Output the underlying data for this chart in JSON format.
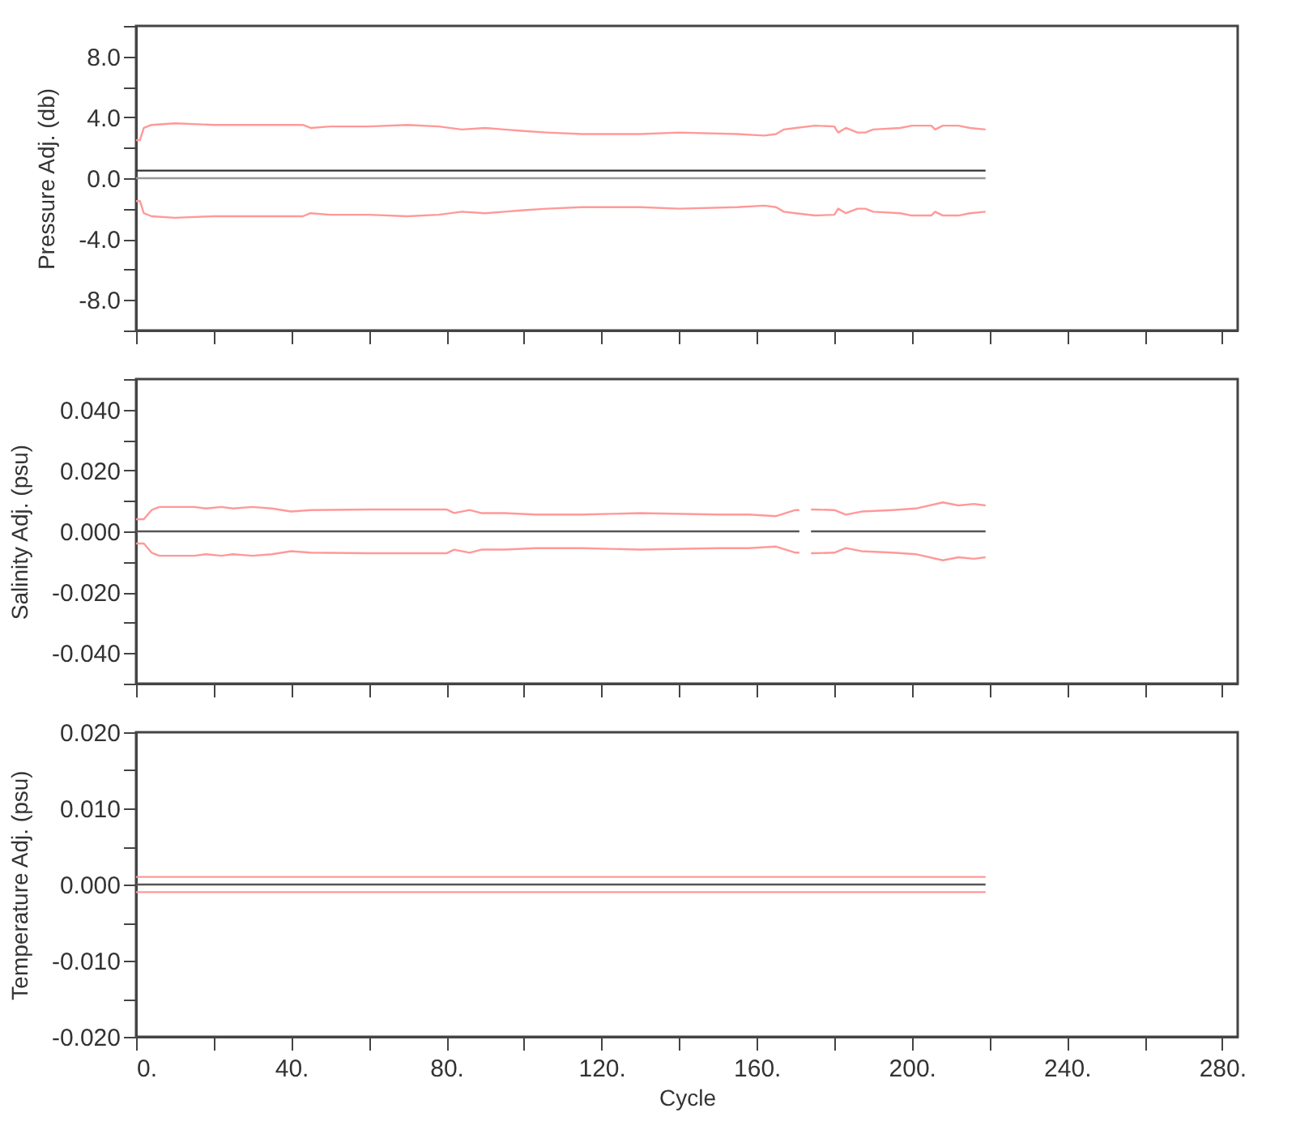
{
  "chart_data": [
    {
      "type": "line",
      "ylabel": "Pressure Adj. (db)",
      "xlim": [
        0,
        284
      ],
      "ylim": [
        -10,
        10
      ],
      "xticks": [
        {
          "value": 0,
          "label": null
        },
        {
          "value": 20,
          "label": null
        },
        {
          "value": 40,
          "label": null
        },
        {
          "value": 60,
          "label": null
        },
        {
          "value": 80,
          "label": null
        },
        {
          "value": 100,
          "label": null
        },
        {
          "value": 120,
          "label": null
        },
        {
          "value": 140,
          "label": null
        },
        {
          "value": 160,
          "label": null
        },
        {
          "value": 180,
          "label": null
        },
        {
          "value": 200,
          "label": null
        },
        {
          "value": 220,
          "label": null
        },
        {
          "value": 240,
          "label": null
        },
        {
          "value": 260,
          "label": null
        },
        {
          "value": 280,
          "label": null
        }
      ],
      "yticks": [
        {
          "value": -10,
          "label": null
        },
        {
          "value": -8,
          "label": "-8.0"
        },
        {
          "value": -6,
          "label": null
        },
        {
          "value": -4,
          "label": "-4.0"
        },
        {
          "value": -2,
          "label": null
        },
        {
          "value": 0,
          "label": "0.0"
        },
        {
          "value": 2,
          "label": null
        },
        {
          "value": 4,
          "label": "4.0"
        },
        {
          "value": 6,
          "label": null
        },
        {
          "value": 8,
          "label": "8.0"
        },
        {
          "value": 10,
          "label": null
        }
      ],
      "tick_labels": "y",
      "grid": false,
      "series": [
        {
          "color": "#999999",
          "x": [
            0,
            219
          ],
          "values": [
            0,
            0
          ]
        },
        {
          "color": "#333333",
          "x": [
            0,
            219
          ],
          "values": [
            0.5,
            0.5
          ]
        },
        {
          "color": "#ff9999",
          "x": [
            0,
            1,
            2,
            4,
            10,
            20,
            30,
            40,
            43,
            45,
            50,
            60,
            70,
            78,
            84,
            90,
            95,
            100,
            106,
            115,
            130,
            140,
            155,
            162,
            165,
            167,
            170,
            175,
            180,
            181,
            183,
            186,
            188,
            190,
            197,
            200,
            205,
            206,
            208,
            212,
            215,
            219
          ],
          "values": [
            2.5,
            2.5,
            3.3,
            3.5,
            3.6,
            3.5,
            3.5,
            3.5,
            3.5,
            3.3,
            3.4,
            3.4,
            3.5,
            3.4,
            3.2,
            3.3,
            3.2,
            3.1,
            3.0,
            2.9,
            2.9,
            3.0,
            2.9,
            2.8,
            2.9,
            3.2,
            3.3,
            3.45,
            3.4,
            3.0,
            3.3,
            3.0,
            3.0,
            3.2,
            3.3,
            3.45,
            3.45,
            3.2,
            3.45,
            3.45,
            3.3,
            3.2
          ]
        },
        {
          "color": "#ff9999",
          "x": [
            0,
            1,
            2,
            4,
            10,
            20,
            30,
            40,
            43,
            45,
            50,
            60,
            70,
            78,
            84,
            90,
            95,
            100,
            106,
            115,
            130,
            140,
            155,
            162,
            165,
            167,
            170,
            175,
            180,
            181,
            183,
            186,
            188,
            190,
            197,
            200,
            205,
            206,
            208,
            212,
            215,
            219
          ],
          "values": [
            -1.5,
            -1.5,
            -2.3,
            -2.5,
            -2.6,
            -2.5,
            -2.5,
            -2.5,
            -2.5,
            -2.3,
            -2.4,
            -2.4,
            -2.5,
            -2.4,
            -2.2,
            -2.3,
            -2.2,
            -2.1,
            -2.0,
            -1.9,
            -1.9,
            -2.0,
            -1.9,
            -1.8,
            -1.9,
            -2.2,
            -2.3,
            -2.45,
            -2.4,
            -2.0,
            -2.3,
            -2.0,
            -2.0,
            -2.2,
            -2.3,
            -2.45,
            -2.45,
            -2.2,
            -2.45,
            -2.45,
            -2.3,
            -2.2
          ]
        }
      ]
    },
    {
      "type": "line",
      "ylabel": "Salinity Adj. (psu)",
      "xlim": [
        0,
        284
      ],
      "ylim": [
        -0.05,
        0.05
      ],
      "xticks": [
        {
          "value": 0,
          "label": null
        },
        {
          "value": 20,
          "label": null
        },
        {
          "value": 40,
          "label": null
        },
        {
          "value": 60,
          "label": null
        },
        {
          "value": 80,
          "label": null
        },
        {
          "value": 100,
          "label": null
        },
        {
          "value": 120,
          "label": null
        },
        {
          "value": 140,
          "label": null
        },
        {
          "value": 160,
          "label": null
        },
        {
          "value": 180,
          "label": null
        },
        {
          "value": 200,
          "label": null
        },
        {
          "value": 220,
          "label": null
        },
        {
          "value": 240,
          "label": null
        },
        {
          "value": 260,
          "label": null
        },
        {
          "value": 280,
          "label": null
        }
      ],
      "yticks": [
        {
          "value": -0.05,
          "label": null
        },
        {
          "value": -0.04,
          "label": "-0.040"
        },
        {
          "value": -0.03,
          "label": null
        },
        {
          "value": -0.02,
          "label": "-0.020"
        },
        {
          "value": -0.01,
          "label": null
        },
        {
          "value": 0,
          "label": "0.000"
        },
        {
          "value": 0.01,
          "label": null
        },
        {
          "value": 0.02,
          "label": "0.020"
        },
        {
          "value": 0.03,
          "label": null
        },
        {
          "value": 0.04,
          "label": "0.040"
        },
        {
          "value": 0.05,
          "label": null
        }
      ],
      "tick_labels": "y",
      "grid": false,
      "series": [
        {
          "color": "#555555",
          "x": [
            0,
            171,
            172,
            174,
            219
          ],
          "values": [
            0,
            0,
            null,
            0,
            0
          ]
        },
        {
          "color": "#ff9999",
          "x": [
            0,
            2,
            4,
            6,
            15,
            18,
            22,
            25,
            30,
            35,
            40,
            45,
            60,
            80,
            82,
            86,
            89,
            95,
            103,
            115,
            130,
            150,
            158,
            165,
            170,
            171,
            172,
            174,
            180,
            183,
            187,
            195,
            201,
            208,
            212,
            216,
            219
          ],
          "values": [
            0.004,
            0.004,
            0.007,
            0.008,
            0.008,
            0.0075,
            0.008,
            0.0075,
            0.008,
            0.0075,
            0.0065,
            0.007,
            0.0072,
            0.0072,
            0.006,
            0.007,
            0.006,
            0.006,
            0.0055,
            0.0055,
            0.006,
            0.0055,
            0.0055,
            0.005,
            0.007,
            0.007,
            null,
            0.0072,
            0.007,
            0.0055,
            0.0065,
            0.007,
            0.0075,
            0.0095,
            0.0085,
            0.009,
            0.0085
          ]
        },
        {
          "color": "#ff9999",
          "x": [
            0,
            2,
            4,
            6,
            15,
            18,
            22,
            25,
            30,
            35,
            40,
            45,
            60,
            80,
            82,
            86,
            89,
            95,
            103,
            115,
            130,
            150,
            158,
            165,
            170,
            171,
            172,
            174,
            180,
            183,
            187,
            195,
            201,
            208,
            212,
            216,
            219
          ],
          "values": [
            -0.004,
            -0.004,
            -0.007,
            -0.008,
            -0.008,
            -0.0075,
            -0.008,
            -0.0075,
            -0.008,
            -0.0075,
            -0.0065,
            -0.007,
            -0.0072,
            -0.0072,
            -0.006,
            -0.007,
            -0.006,
            -0.006,
            -0.0055,
            -0.0055,
            -0.006,
            -0.0055,
            -0.0055,
            -0.005,
            -0.007,
            -0.007,
            null,
            -0.0072,
            -0.007,
            -0.0055,
            -0.0065,
            -0.007,
            -0.0075,
            -0.0095,
            -0.0085,
            -0.009,
            -0.0085
          ]
        }
      ]
    },
    {
      "type": "line",
      "xlabel": "Cycle",
      "ylabel": "Temperature Adj. (psu)",
      "xlim": [
        0,
        284
      ],
      "ylim": [
        -0.02,
        0.02
      ],
      "xticks": [
        {
          "value": 0,
          "label": "0."
        },
        {
          "value": 20,
          "label": null
        },
        {
          "value": 40,
          "label": "40."
        },
        {
          "value": 60,
          "label": null
        },
        {
          "value": 80,
          "label": "80."
        },
        {
          "value": 100,
          "label": null
        },
        {
          "value": 120,
          "label": "120."
        },
        {
          "value": 140,
          "label": null
        },
        {
          "value": 160,
          "label": "160."
        },
        {
          "value": 180,
          "label": null
        },
        {
          "value": 200,
          "label": "200."
        },
        {
          "value": 220,
          "label": null
        },
        {
          "value": 240,
          "label": "240."
        },
        {
          "value": 260,
          "label": null
        },
        {
          "value": 280,
          "label": "280."
        }
      ],
      "yticks": [
        {
          "value": -0.02,
          "label": "-0.020"
        },
        {
          "value": -0.015,
          "label": null
        },
        {
          "value": -0.01,
          "label": "-0.010"
        },
        {
          "value": -0.005,
          "label": null
        },
        {
          "value": 0,
          "label": "0.000"
        },
        {
          "value": 0.005,
          "label": null
        },
        {
          "value": 0.01,
          "label": "0.010"
        },
        {
          "value": 0.015,
          "label": null
        },
        {
          "value": 0.02,
          "label": "0.020"
        }
      ],
      "grid": false,
      "series": [
        {
          "color": "#555555",
          "x": [
            0,
            219
          ],
          "values": [
            0,
            0
          ]
        },
        {
          "color": "#ff9999",
          "x": [
            0,
            219
          ],
          "values": [
            0.001,
            0.001
          ]
        },
        {
          "color": "#ff9999",
          "x": [
            0,
            219
          ],
          "values": [
            -0.001,
            -0.001
          ]
        }
      ]
    }
  ]
}
